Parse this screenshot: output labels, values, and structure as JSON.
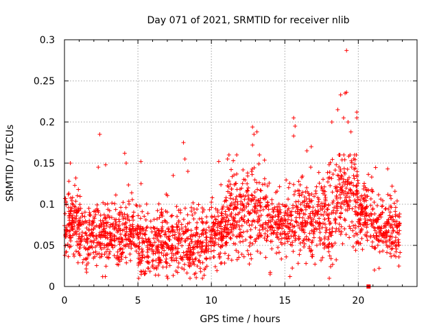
{
  "chart_data": {
    "type": "scatter",
    "title": "Day 071 of 2021, SRMTID for receiver nlib",
    "xlabel": "GPS time / hours",
    "ylabel": "SRMTID / TECUs",
    "xlim": [
      0,
      24
    ],
    "ylim": [
      0,
      0.3
    ],
    "grid": true,
    "marker": "+",
    "point_color": "#ff0000",
    "axis_color": "#000000",
    "grid_color": "#a0a0a0",
    "xticks": [
      0,
      5,
      10,
      15,
      20
    ],
    "xtick_labels": [
      "0",
      "5",
      "10",
      "15",
      "20"
    ],
    "yticks": [
      0,
      0.05,
      0.1,
      0.15,
      0.2,
      0.25,
      0.3
    ],
    "ytick_labels": [
      "0",
      "0.05",
      "0.1",
      "0.15",
      "0.2",
      "0.25",
      "0.3"
    ],
    "outlier_points": [
      {
        "x": 0.4,
        "y": 0.15
      },
      {
        "x": 0.3,
        "y": 0.128
      },
      {
        "x": 0.7,
        "y": 0.123
      },
      {
        "x": 2.4,
        "y": 0.185
      },
      {
        "x": 2.3,
        "y": 0.145
      },
      {
        "x": 2.8,
        "y": 0.148
      },
      {
        "x": 2.6,
        "y": 0.012
      },
      {
        "x": 4.1,
        "y": 0.162
      },
      {
        "x": 4.2,
        "y": 0.15
      },
      {
        "x": 5.2,
        "y": 0.152
      },
      {
        "x": 5.5,
        "y": 0.016
      },
      {
        "x": 7.4,
        "y": 0.135
      },
      {
        "x": 8.1,
        "y": 0.175
      },
      {
        "x": 8.2,
        "y": 0.155
      },
      {
        "x": 8.4,
        "y": 0.14
      },
      {
        "x": 10.5,
        "y": 0.152
      },
      {
        "x": 11.1,
        "y": 0.155
      },
      {
        "x": 12.8,
        "y": 0.194
      },
      {
        "x": 12.9,
        "y": 0.185
      },
      {
        "x": 13.1,
        "y": 0.188
      },
      {
        "x": 12.8,
        "y": 0.172
      },
      {
        "x": 14.0,
        "y": 0.015
      },
      {
        "x": 15.6,
        "y": 0.205
      },
      {
        "x": 15.7,
        "y": 0.195
      },
      {
        "x": 15.6,
        "y": 0.183
      },
      {
        "x": 16.8,
        "y": 0.17
      },
      {
        "x": 16.5,
        "y": 0.165
      },
      {
        "x": 18.2,
        "y": 0.2
      },
      {
        "x": 18.6,
        "y": 0.215
      },
      {
        "x": 18.8,
        "y": 0.233
      },
      {
        "x": 19.1,
        "y": 0.235
      },
      {
        "x": 19.2,
        "y": 0.236
      },
      {
        "x": 19.2,
        "y": 0.287
      },
      {
        "x": 19.0,
        "y": 0.205
      },
      {
        "x": 19.3,
        "y": 0.2
      },
      {
        "x": 19.9,
        "y": 0.212
      },
      {
        "x": 19.9,
        "y": 0.205
      },
      {
        "x": 19.5,
        "y": 0.188
      },
      {
        "x": 21.1,
        "y": 0.02
      },
      {
        "x": 22.0,
        "y": 0.143
      },
      {
        "x": 22.3,
        "y": 0.122
      }
    ],
    "marked_point": {
      "x": 20.7,
      "y": 0
    }
  }
}
